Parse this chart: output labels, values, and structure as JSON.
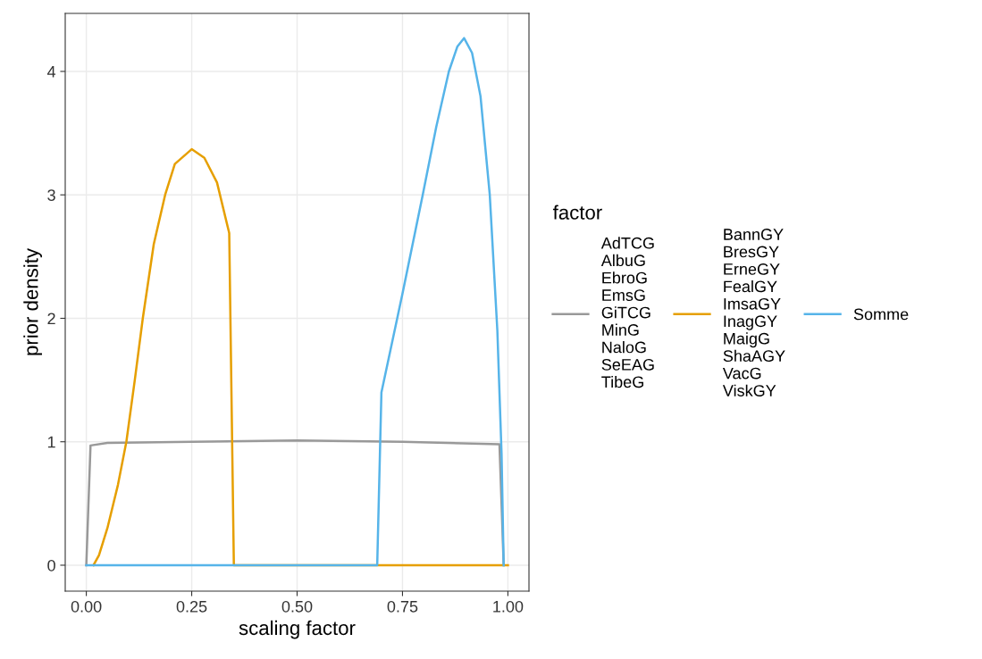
{
  "chart_data": {
    "type": "line",
    "xlabel": "scaling factor",
    "ylabel": "prior density",
    "legend_title": "factor",
    "xlim": [
      -0.05,
      1.05
    ],
    "xticks": [
      {
        "value": 0,
        "label": "0.00"
      },
      {
        "value": 0.25,
        "label": "0.25"
      },
      {
        "value": 0.5,
        "label": "0.50"
      },
      {
        "value": 0.75,
        "label": "0.75"
      },
      {
        "value": 1,
        "label": "1.00"
      }
    ],
    "ylim": [
      -0.21,
      4.47
    ],
    "yticks": [
      0,
      1,
      2,
      3,
      4
    ],
    "grid": true,
    "legend": "right",
    "series": [
      {
        "name": "AdTCG\nAlbuG\nEbroG\nEmsG\nGiTCG\nMinG\nNaloG\nSeEAG\nTibeG",
        "color": "#999999",
        "x": [
          0,
          0.01,
          0.05,
          0.25,
          0.5,
          0.75,
          0.98,
          0.99
        ],
        "values": [
          0,
          0.97,
          0.99,
          1.0,
          1.01,
          1.0,
          0.98,
          0
        ]
      },
      {
        "name": "BannGY\nBresGY\nErneGY\nFealGY\nImsaGY\nInagGY\nMaigG\nShaAGY\nVacG\nViskGY",
        "color": "#E69F00",
        "x": [
          0.017,
          0.03,
          0.05,
          0.075,
          0.095,
          0.115,
          0.134,
          0.16,
          0.187,
          0.21,
          0.25,
          0.28,
          0.31,
          0.339,
          0.35,
          1.0
        ],
        "values": [
          0,
          0.08,
          0.3,
          0.65,
          1.0,
          1.5,
          2.0,
          2.6,
          3.0,
          3.25,
          3.37,
          3.3,
          3.1,
          2.69,
          0,
          0
        ]
      },
      {
        "name": "Somme",
        "color": "#56B4E9",
        "x": [
          0,
          0.69,
          0.7,
          0.75,
          0.798,
          0.83,
          0.86,
          0.88,
          0.896,
          0.915,
          0.935,
          0.957,
          0.975,
          0.985,
          0.99
        ],
        "values": [
          0,
          0,
          1.4,
          2.2,
          3.0,
          3.55,
          4.0,
          4.2,
          4.27,
          4.15,
          3.8,
          3.0,
          1.9,
          0.9,
          0
        ]
      }
    ]
  }
}
